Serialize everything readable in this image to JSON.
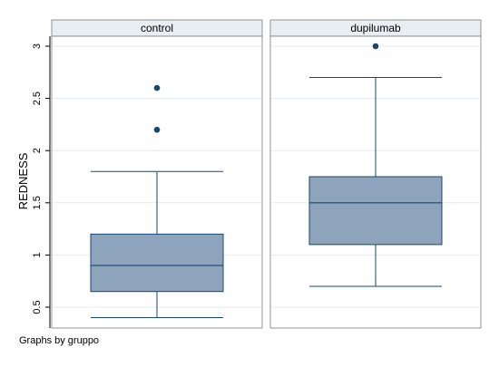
{
  "chart_data": {
    "type": "boxplot",
    "ylabel": "REDNESS",
    "ylim": [
      0.35,
      3.05
    ],
    "yticks": [
      0.5,
      1,
      1.5,
      2,
      2.5,
      3
    ],
    "ytick_labels": [
      "0.5",
      "1",
      "1.5",
      "2",
      "2.5",
      "3"
    ],
    "grid": true,
    "note": "Graphs by gruppo",
    "colors": {
      "box_fill": "#8ea4bc",
      "box_stroke": "#1a476f",
      "outlier": "#1a476f",
      "strip_fill": "#e9eef3",
      "grid": "#e6ebf0",
      "frame": "#7a7a7a"
    },
    "panels": [
      {
        "label": "control",
        "lower_whisker": 0.4,
        "q1": 0.65,
        "median": 0.9,
        "q3": 1.2,
        "upper_whisker": 1.8,
        "outliers": [
          2.2,
          2.6
        ]
      },
      {
        "label": "dupilumab",
        "lower_whisker": 0.7,
        "q1": 1.1,
        "median": 1.5,
        "q3": 1.75,
        "upper_whisker": 2.7,
        "outliers": [
          3.0
        ]
      }
    ]
  }
}
